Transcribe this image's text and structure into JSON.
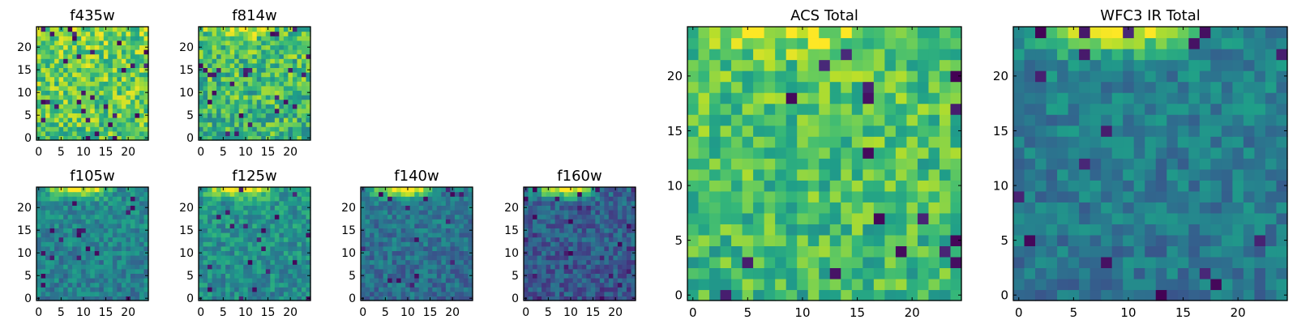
{
  "figure": {
    "layout": "image-grid",
    "colormap": "viridis",
    "colormap_stops": [
      "#440154",
      "#482878",
      "#3e4989",
      "#31688e",
      "#26828e",
      "#1f9e89",
      "#35b779",
      "#6ece58",
      "#b5de2b",
      "#fde725"
    ]
  },
  "chart_data": [
    {
      "type": "heatmap",
      "title": "f435w",
      "xlim": [
        0,
        24
      ],
      "ylim": [
        0,
        24
      ],
      "xticks": [
        0,
        5,
        10,
        15,
        20
      ],
      "yticks": [
        0,
        5,
        10,
        15,
        20
      ],
      "grid": [
        25,
        25
      ],
      "value_range": [
        0,
        1
      ],
      "pattern": "noisy, mostly high values (yellow-green) with scattered dark pixels",
      "seed": 11,
      "mean": 0.75,
      "noise": 0.22,
      "top_glow": 0.0,
      "dark_fraction": 0.04
    },
    {
      "type": "heatmap",
      "title": "f814w",
      "xlim": [
        0,
        24
      ],
      "ylim": [
        0,
        24
      ],
      "xticks": [
        0,
        5,
        10,
        15,
        20
      ],
      "yticks": [
        0,
        5,
        10,
        15,
        20
      ],
      "grid": [
        25,
        25
      ],
      "value_range": [
        0,
        1
      ],
      "pattern": "noisy green-yellow, brighter band near top",
      "seed": 23,
      "mean": 0.68,
      "noise": 0.22,
      "top_glow": 0.25,
      "dark_fraction": 0.03
    },
    {
      "type": "heatmap",
      "title": "f105w",
      "xlim": [
        0,
        24
      ],
      "ylim": [
        0,
        24
      ],
      "xticks": [
        0,
        5,
        10,
        15,
        20
      ],
      "yticks": [
        0,
        5,
        10,
        15,
        20
      ],
      "grid": [
        25,
        25
      ],
      "value_range": [
        0,
        1
      ],
      "pattern": "teal background, bright yellow glow along top edge",
      "seed": 37,
      "mean": 0.45,
      "noise": 0.14,
      "top_glow": 0.5,
      "dark_fraction": 0.03
    },
    {
      "type": "heatmap",
      "title": "f125w",
      "xlim": [
        0,
        24
      ],
      "ylim": [
        0,
        24
      ],
      "xticks": [
        0,
        5,
        10,
        15,
        20
      ],
      "yticks": [
        0,
        5,
        10,
        15,
        20
      ],
      "grid": [
        25,
        25
      ],
      "value_range": [
        0,
        1
      ],
      "pattern": "green-teal background, bright yellow glow along top edge",
      "seed": 41,
      "mean": 0.5,
      "noise": 0.15,
      "top_glow": 0.48,
      "dark_fraction": 0.03
    },
    {
      "type": "heatmap",
      "title": "f140w",
      "xlim": [
        0,
        24
      ],
      "ylim": [
        0,
        24
      ],
      "xticks": [
        0,
        5,
        10,
        15,
        20
      ],
      "yticks": [
        0,
        5,
        10,
        15,
        20
      ],
      "grid": [
        25,
        25
      ],
      "value_range": [
        0,
        1
      ],
      "pattern": "blue-teal background, yellow glow at top",
      "seed": 53,
      "mean": 0.38,
      "noise": 0.14,
      "top_glow": 0.58,
      "dark_fraction": 0.03
    },
    {
      "type": "heatmap",
      "title": "f160w",
      "xlim": [
        0,
        24
      ],
      "ylim": [
        0,
        24
      ],
      "xticks": [
        0,
        5,
        10,
        15,
        20
      ],
      "yticks": [
        0,
        5,
        10,
        15,
        20
      ],
      "grid": [
        25,
        25
      ],
      "value_range": [
        0,
        1
      ],
      "pattern": "dark blue-purple background, yellow glow at top-left",
      "seed": 67,
      "mean": 0.3,
      "noise": 0.14,
      "top_glow": 0.65,
      "dark_fraction": 0.04
    },
    {
      "type": "heatmap",
      "title": "ACS Total",
      "xlim": [
        0,
        24
      ],
      "ylim": [
        0,
        24
      ],
      "xticks": [
        0,
        5,
        10,
        15,
        20
      ],
      "yticks": [
        0,
        5,
        10,
        15,
        20
      ],
      "grid": [
        25,
        25
      ],
      "value_range": [
        0,
        1
      ],
      "pattern": "green-yellow blocks, scattered dark purple pixels",
      "seed": 79,
      "mean": 0.7,
      "noise": 0.18,
      "top_glow": 0.2,
      "dark_fraction": 0.035
    },
    {
      "type": "heatmap",
      "title": "WFC3 IR Total",
      "xlim": [
        0,
        24
      ],
      "ylim": [
        0,
        24
      ],
      "xticks": [
        0,
        5,
        10,
        15,
        20
      ],
      "yticks": [
        0,
        5,
        10,
        15,
        20
      ],
      "grid": [
        25,
        25
      ],
      "value_range": [
        0,
        1
      ],
      "pattern": "teal-blue blocks, yellow strip along top, scattered dark pixels",
      "seed": 97,
      "mean": 0.42,
      "noise": 0.13,
      "top_glow": 0.55,
      "dark_fraction": 0.035
    }
  ]
}
